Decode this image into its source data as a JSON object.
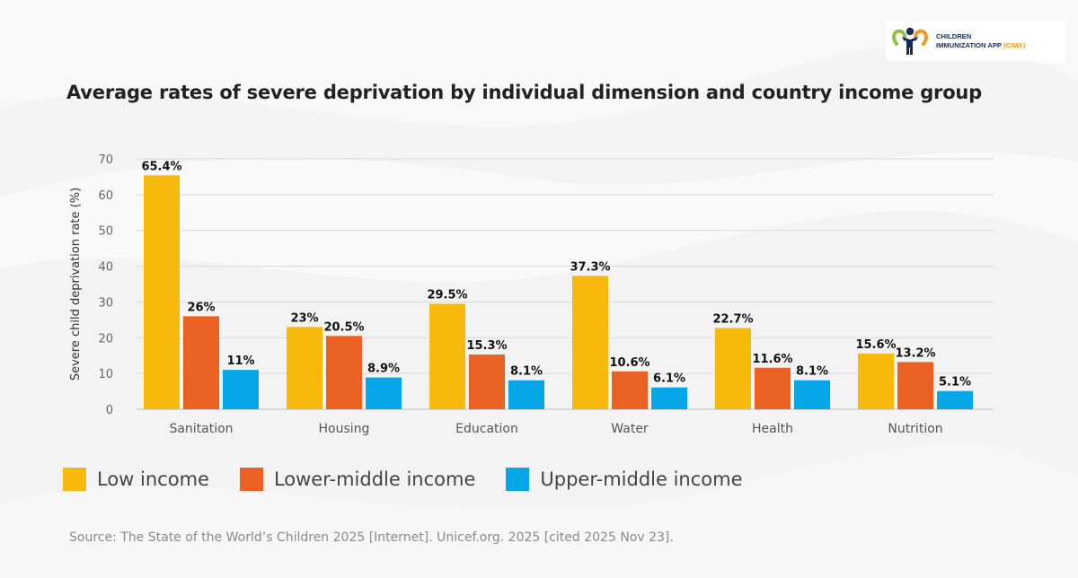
{
  "logo": {
    "line1": "CHILDREN",
    "line2": "IMMUNIZATION APP",
    "line2_accent": "(CIMA)",
    "icon": "family-heart-icon"
  },
  "chart_data": {
    "type": "bar",
    "title": "Average rates of severe deprivation by individual dimension and country income group",
    "xlabel": "",
    "ylabel": "Severe child deprivation rate (%)",
    "ylim": [
      0,
      70
    ],
    "yticks": [
      0,
      10,
      20,
      30,
      40,
      50,
      60,
      70
    ],
    "grid": true,
    "legend_position": "bottom-left",
    "categories": [
      "Sanitation",
      "Housing",
      "Education",
      "Water",
      "Health",
      "Nutrition"
    ],
    "series": [
      {
        "name": "Low income",
        "color": "#f7b90c",
        "values": [
          65.4,
          23,
          29.5,
          37.3,
          22.7,
          15.6
        ],
        "labels": [
          "65.4%",
          "23%",
          "29.5%",
          "37.3%",
          "22.7%",
          "15.6%"
        ]
      },
      {
        "name": "Lower-middle income",
        "color": "#ea6122",
        "values": [
          26,
          20.5,
          15.3,
          10.6,
          11.6,
          13.2
        ],
        "labels": [
          "26%",
          "20.5%",
          "15.3%",
          "10.6%",
          "11.6%",
          "13.2%"
        ]
      },
      {
        "name": "Upper-middle income",
        "color": "#05a7e8",
        "values": [
          11,
          8.9,
          8.1,
          6.1,
          8.1,
          5.1
        ],
        "labels": [
          "11%",
          "8.9%",
          "8.1%",
          "6.1%",
          "8.1%",
          "5.1%"
        ]
      }
    ]
  },
  "source": "Source: The State of the World’s Children 2025 [Internet]. Unicef.org. 2025 [cited 2025 Nov 23]."
}
